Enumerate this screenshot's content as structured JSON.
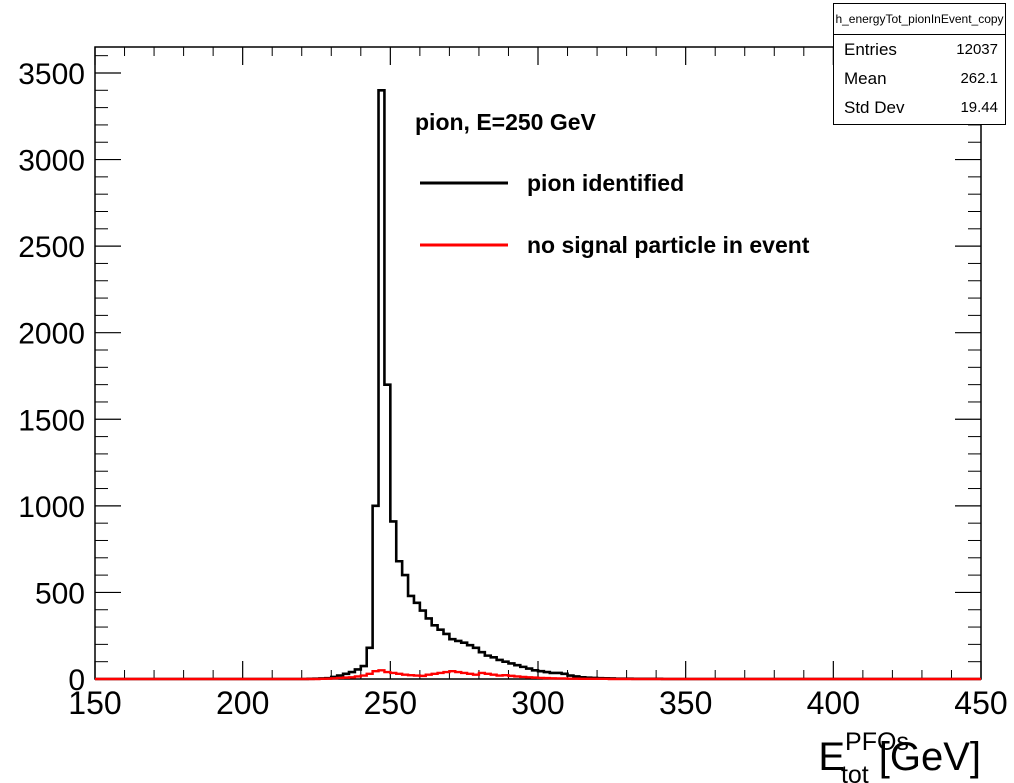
{
  "stats_box": {
    "title": "h_energyTot_pionInEvent_copy",
    "rows": [
      {
        "label": "Entries",
        "value": "12037"
      },
      {
        "label": "Mean",
        "value": "262.1"
      },
      {
        "label": "Std Dev",
        "value": "19.44"
      }
    ]
  },
  "colors": {
    "pion_identified": "#000000",
    "no_signal": "#ff0000"
  },
  "chart_data": {
    "type": "line",
    "title": "",
    "annotation": "pion, E=250 GeV",
    "xlabel": {
      "base": "E",
      "sub": "tot",
      "sup": "PFOs",
      "unit": "[GeV]"
    },
    "ylabel": "",
    "xlim": [
      150,
      450
    ],
    "ylim": [
      0,
      3650
    ],
    "xticks": [
      "150",
      "200",
      "250",
      "300",
      "350",
      "400",
      "450"
    ],
    "yticks": [
      "0",
      "500",
      "1000",
      "1500",
      "2000",
      "2500",
      "3000",
      "3500"
    ],
    "bin_width": 2,
    "bin_edges_start": 150,
    "legend_position": "top-center",
    "series": [
      {
        "name": "pion identified",
        "color": "#000000",
        "values": [
          0,
          0,
          0,
          0,
          0,
          0,
          0,
          0,
          0,
          0,
          0,
          0,
          0,
          0,
          0,
          0,
          0,
          0,
          0,
          0,
          0,
          0,
          0,
          0,
          0,
          0,
          0,
          0,
          0,
          0,
          0,
          0,
          0,
          0,
          0,
          0,
          1,
          2,
          3,
          5,
          12,
          20,
          30,
          40,
          55,
          75,
          180,
          1000,
          3400,
          1700,
          910,
          680,
          600,
          480,
          440,
          395,
          350,
          310,
          285,
          260,
          230,
          220,
          210,
          195,
          180,
          155,
          135,
          125,
          110,
          100,
          90,
          80,
          70,
          60,
          50,
          45,
          40,
          35,
          35,
          30,
          20,
          15,
          10,
          8,
          6,
          5,
          4,
          3,
          2,
          2,
          2,
          1,
          1,
          1,
          1,
          1,
          0,
          0,
          0,
          0,
          0,
          0,
          0,
          0,
          0,
          0,
          0,
          0,
          0,
          0,
          0,
          0,
          0,
          0,
          0,
          0,
          0,
          0,
          0,
          0,
          0,
          0,
          0,
          0,
          0,
          0,
          0,
          0,
          0,
          0,
          0,
          0,
          0,
          0,
          0,
          0,
          0,
          0,
          0,
          0,
          0,
          0,
          0,
          0,
          0,
          0,
          0,
          0,
          0,
          0
        ]
      },
      {
        "name": "no signal particle in event",
        "color": "#ff0000",
        "values": [
          0,
          0,
          0,
          0,
          0,
          0,
          0,
          0,
          0,
          0,
          0,
          0,
          0,
          0,
          0,
          0,
          0,
          0,
          0,
          0,
          0,
          0,
          0,
          0,
          0,
          0,
          0,
          0,
          0,
          0,
          0,
          0,
          0,
          0,
          0,
          0,
          0,
          0,
          1,
          2,
          4,
          6,
          8,
          10,
          15,
          20,
          30,
          45,
          50,
          40,
          35,
          30,
          25,
          22,
          20,
          18,
          25,
          30,
          35,
          40,
          45,
          40,
          35,
          30,
          25,
          35,
          30,
          25,
          20,
          22,
          18,
          15,
          12,
          10,
          8,
          6,
          5,
          4,
          3,
          3,
          2,
          2,
          1,
          1,
          1,
          1,
          1,
          0,
          0,
          0,
          0,
          0,
          0,
          0,
          0,
          0,
          0,
          0,
          0,
          0,
          0,
          0,
          0,
          0,
          0,
          0,
          0,
          0,
          0,
          0,
          0,
          0,
          0,
          0,
          0,
          0,
          0,
          0,
          0,
          0,
          0,
          0,
          0,
          0,
          0,
          0,
          0,
          0,
          0,
          0,
          0,
          0,
          0,
          0,
          0,
          0,
          0,
          0,
          0,
          0,
          0,
          0,
          0,
          0,
          0,
          0,
          0,
          0,
          0,
          0
        ]
      }
    ]
  }
}
